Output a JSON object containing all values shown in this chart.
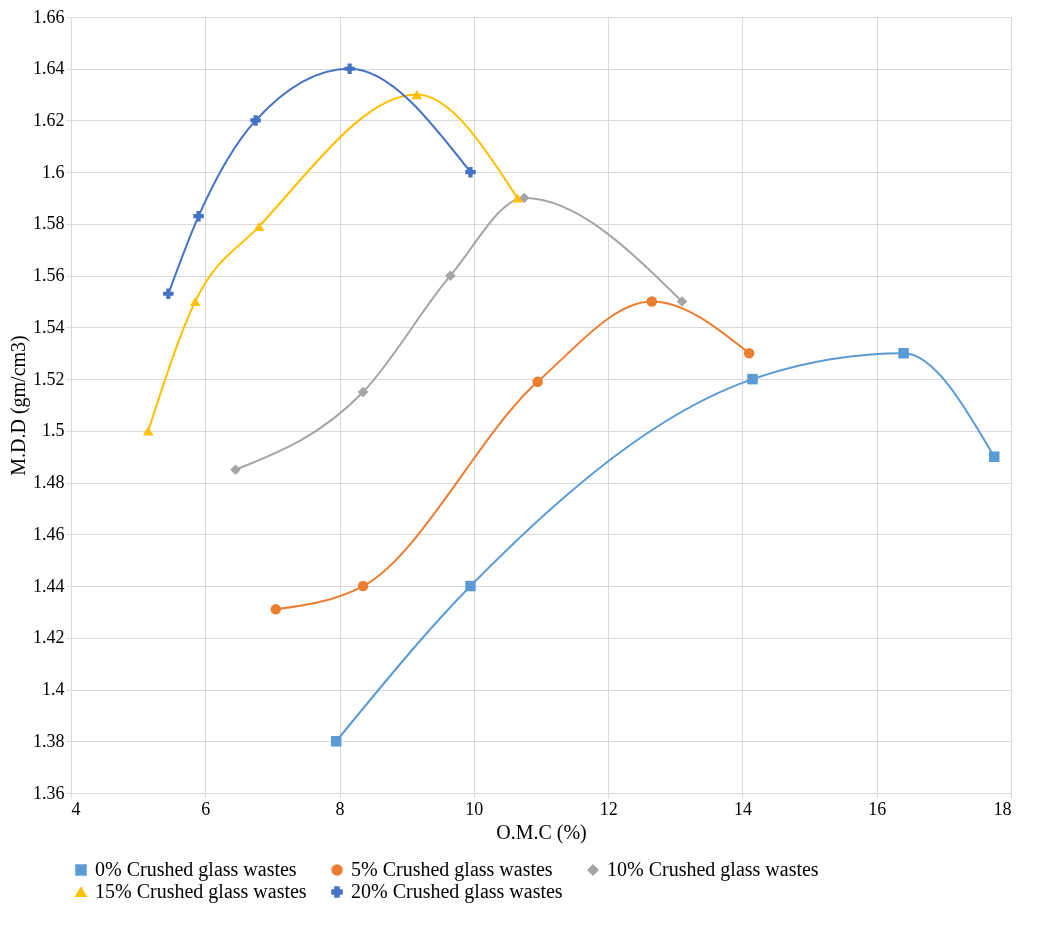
{
  "chart_data": {
    "type": "line",
    "xlabel": "O.M.C (%)",
    "ylabel": "M.D.D (gm/cm3)",
    "xlim": [
      4,
      18
    ],
    "xticks": [
      4,
      6,
      8,
      10,
      12,
      14,
      16,
      18
    ],
    "ylim": [
      1.36,
      1.66
    ],
    "yticks": [
      1.36,
      1.38,
      1.4,
      1.42,
      1.44,
      1.46,
      1.48,
      1.5,
      1.52,
      1.54,
      1.56,
      1.58,
      1.6,
      1.62,
      1.64,
      1.66
    ],
    "grid": true,
    "legend": "bottom",
    "series": [
      {
        "name": "0% Crushed glass wastes",
        "color": "#5b9bd5",
        "marker": "square",
        "x": [
          7.95,
          9.95,
          14.15,
          16.4,
          17.75
        ],
        "values": [
          1.38,
          1.44,
          1.52,
          1.53,
          1.49
        ]
      },
      {
        "name": "5% Crushed glass wastes",
        "color": "#ed7d31",
        "marker": "circle",
        "x": [
          7.05,
          8.35,
          10.95,
          12.65,
          14.1
        ],
        "values": [
          1.431,
          1.44,
          1.519,
          1.55,
          1.53
        ]
      },
      {
        "name": "10% Crushed glass wastes",
        "color": "#a5a5a5",
        "marker": "diamond",
        "x": [
          6.45,
          8.35,
          9.65,
          10.75,
          13.1
        ],
        "values": [
          1.485,
          1.515,
          1.56,
          1.59,
          1.55
        ]
      },
      {
        "name": "15% Crushed glass wastes",
        "color": "#ffc000",
        "marker": "triangle",
        "x": [
          5.15,
          5.85,
          6.8,
          9.15,
          10.65
        ],
        "values": [
          1.5,
          1.55,
          1.579,
          1.63,
          1.59
        ]
      },
      {
        "name": "20% Crushed glass wastes",
        "color": "#4472c4",
        "marker": "cross",
        "x": [
          5.45,
          5.9,
          6.75,
          8.15,
          9.95
        ],
        "values": [
          1.553,
          1.583,
          1.62,
          1.64,
          1.6
        ]
      }
    ]
  }
}
